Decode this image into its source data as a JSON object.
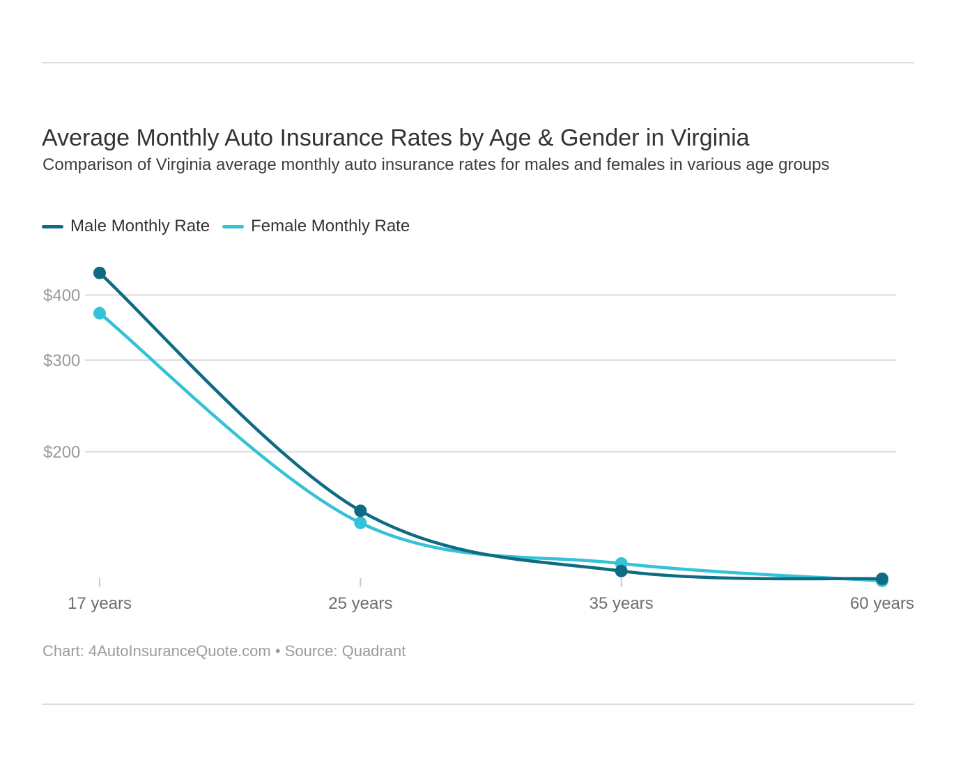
{
  "page": {
    "title": "Average Monthly Auto Insurance Rates by Age & Gender in Virginia",
    "subtitle": "Comparison of Virginia average monthly auto insurance rates for males and females in various age groups",
    "footer": "Chart: 4AutoInsuranceQuote.com • Source: Quadrant"
  },
  "colors": {
    "male_line": "#0e6b83",
    "female_line": "#35c1d6",
    "gridline": "#dadada",
    "tick": "#c9c9c9",
    "y_label": "#9b9b9b",
    "x_label": "#6e6e6e"
  },
  "chart_data": {
    "type": "line",
    "title": "Average Monthly Auto Insurance Rates by Age & Gender in Virginia",
    "subtitle": "Comparison of Virginia average monthly auto insurance rates for males and females in various age groups",
    "categories": [
      "17 years",
      "25 years",
      "35 years",
      "60 years"
    ],
    "series": [
      {
        "name": "Male Monthly Rate",
        "color": "#0e6b83",
        "values": [
          441,
          154,
          118,
          114
        ]
      },
      {
        "name": "Female Monthly Rate",
        "color": "#35c1d6",
        "values": [
          369,
          146,
          122,
          113
        ]
      }
    ],
    "y_ticks": [
      {
        "label": "$400",
        "value": 400
      },
      {
        "label": "$300",
        "value": 300
      },
      {
        "label": "$200",
        "value": 200
      }
    ],
    "ylabel": "",
    "xlabel": "",
    "scale": "log",
    "ylim_displayed": [
      110,
      460
    ],
    "grid": "horizontal",
    "legend_position": "top-left",
    "markers": "circle"
  }
}
